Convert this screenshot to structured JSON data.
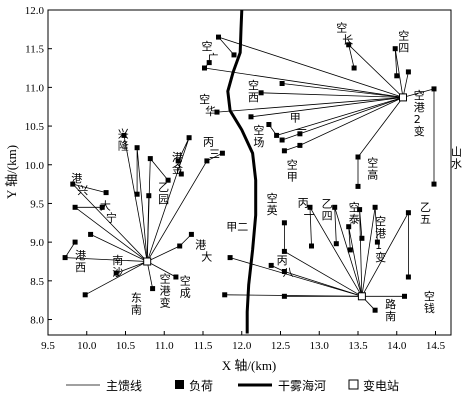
{
  "axes": {
    "xlabel": "X 轴/(km)",
    "ylabel": "Y 轴/(km)",
    "x_ticks": [
      "9.5",
      "10.0",
      "10.5",
      "11.0",
      "11.5",
      "12.0",
      "12.5",
      "13.0",
      "13.5",
      "14.0",
      "14.5"
    ],
    "y_ticks": [
      "8.0",
      "8.5",
      "9.0",
      "9.5",
      "10.0",
      "10.5",
      "11.0",
      "11.5",
      "12.0"
    ],
    "xlim": [
      9.5,
      14.7
    ],
    "ylim": [
      7.8,
      12.0
    ]
  },
  "legend": {
    "feeder": "主馈线",
    "load": "负荷",
    "river": "干雾海河",
    "substation": "变电站"
  },
  "substations": [
    {
      "x": 10.78,
      "y": 8.75
    },
    {
      "x": 13.55,
      "y": 8.3
    },
    {
      "x": 14.08,
      "y": 10.87
    }
  ],
  "feeders": [
    {
      "sub": 0,
      "path": [
        [
          9.82,
          9.75
        ],
        [
          10.25,
          9.64
        ]
      ]
    },
    {
      "sub": 0,
      "path": [
        [
          9.85,
          9.45
        ],
        [
          10.2,
          9.45
        ]
      ]
    },
    {
      "sub": 0,
      "path": [
        [
          10.05,
          9.1
        ]
      ]
    },
    {
      "sub": 0,
      "path": [
        [
          9.72,
          8.8
        ],
        [
          9.85,
          9.0
        ]
      ]
    },
    {
      "sub": 0,
      "path": [
        [
          9.98,
          8.32
        ]
      ]
    },
    {
      "sub": 0,
      "path": [
        [
          10.38,
          8.6
        ]
      ]
    },
    {
      "sub": 0,
      "path": [
        [
          10.48,
          10.38
        ]
      ]
    },
    {
      "sub": 0,
      "path": [
        [
          10.65,
          10.22
        ],
        [
          10.65,
          9.62
        ]
      ]
    },
    {
      "sub": 0,
      "path": [
        [
          10.8,
          9.6
        ]
      ]
    },
    {
      "sub": 0,
      "path": [
        [
          10.82,
          10.08
        ],
        [
          11.05,
          9.8
        ]
      ]
    },
    {
      "sub": 0,
      "path": [
        [
          11.32,
          10.35
        ],
        [
          11.18,
          10.05
        ],
        [
          11.22,
          9.88
        ]
      ]
    },
    {
      "sub": 0,
      "path": [
        [
          11.55,
          10.05
        ],
        [
          11.75,
          10.15
        ]
      ]
    },
    {
      "sub": 0,
      "path": [
        [
          11.2,
          8.95
        ],
        [
          11.35,
          9.1
        ]
      ]
    },
    {
      "sub": 0,
      "path": [
        [
          11.15,
          8.55
        ]
      ]
    },
    {
      "sub": 0,
      "path": [
        [
          10.85,
          8.4
        ]
      ]
    },
    {
      "sub": 1,
      "path": [
        [
          11.85,
          8.8
        ]
      ]
    },
    {
      "sub": 1,
      "path": [
        [
          11.78,
          8.32
        ]
      ]
    },
    {
      "sub": 1,
      "path": [
        [
          12.55,
          8.62
        ],
        [
          12.38,
          8.7
        ]
      ]
    },
    {
      "sub": 1,
      "path": [
        [
          12.55,
          8.88
        ],
        [
          12.55,
          9.25
        ]
      ]
    },
    {
      "sub": 1,
      "path": [
        [
          12.88,
          9.45
        ],
        [
          12.9,
          8.95
        ]
      ]
    },
    {
      "sub": 1,
      "path": [
        [
          13.2,
          9.45
        ],
        [
          13.22,
          8.98
        ]
      ]
    },
    {
      "sub": 1,
      "path": [
        [
          13.38,
          9.2
        ],
        [
          13.4,
          8.9
        ]
      ]
    },
    {
      "sub": 1,
      "path": [
        [
          13.52,
          9.42
        ],
        [
          13.55,
          9.05
        ]
      ]
    },
    {
      "sub": 1,
      "path": [
        [
          13.72,
          9.45
        ],
        [
          13.75,
          9.0
        ]
      ]
    },
    {
      "sub": 1,
      "path": [
        [
          14.15,
          9.38
        ],
        [
          14.15,
          8.55
        ]
      ]
    },
    {
      "sub": 1,
      "path": [
        [
          14.1,
          8.3
        ]
      ]
    },
    {
      "sub": 1,
      "path": [
        [
          13.72,
          8.12
        ]
      ]
    },
    {
      "sub": 1,
      "path": [
        [
          12.55,
          8.3
        ]
      ]
    },
    {
      "sub": 2,
      "path": [
        [
          11.7,
          11.65
        ],
        [
          11.9,
          11.42
        ]
      ]
    },
    {
      "sub": 2,
      "path": [
        [
          11.52,
          11.25
        ],
        [
          11.58,
          11.32
        ]
      ]
    },
    {
      "sub": 2,
      "path": [
        [
          11.68,
          10.68
        ]
      ]
    },
    {
      "sub": 2,
      "path": [
        [
          12.12,
          10.62
        ]
      ]
    },
    {
      "sub": 2,
      "path": [
        [
          12.25,
          10.93
        ]
      ]
    },
    {
      "sub": 2,
      "path": [
        [
          12.52,
          11.05
        ]
      ]
    },
    {
      "sub": 2,
      "path": [
        [
          12.45,
          10.38
        ],
        [
          12.35,
          10.52
        ]
      ]
    },
    {
      "sub": 2,
      "path": [
        [
          12.75,
          10.25
        ],
        [
          12.55,
          10.18
        ]
      ]
    },
    {
      "sub": 2,
      "path": [
        [
          12.75,
          10.4
        ],
        [
          12.52,
          10.32
        ]
      ]
    },
    {
      "sub": 2,
      "path": [
        [
          13.38,
          11.55
        ],
        [
          13.45,
          11.25
        ]
      ]
    },
    {
      "sub": 2,
      "path": [
        [
          13.98,
          11.5
        ],
        [
          14.0,
          11.15
        ]
      ]
    },
    {
      "sub": 2,
      "path": [
        [
          14.15,
          11.2
        ]
      ]
    },
    {
      "sub": 2,
      "path": [
        [
          14.48,
          10.98
        ],
        [
          14.48,
          9.75
        ]
      ]
    },
    {
      "sub": 2,
      "path": [
        [
          13.5,
          10.1
        ],
        [
          13.5,
          9.72
        ]
      ]
    }
  ],
  "river": [
    [
      12.0,
      12.0
    ],
    [
      11.99,
      11.75
    ],
    [
      11.98,
      11.45
    ],
    [
      11.89,
      11.2
    ],
    [
      11.82,
      10.95
    ],
    [
      11.85,
      10.7
    ],
    [
      12.0,
      10.45
    ],
    [
      12.14,
      10.15
    ],
    [
      12.18,
      9.8
    ],
    [
      12.18,
      9.35
    ],
    [
      12.14,
      8.9
    ],
    [
      12.09,
      8.45
    ],
    [
      12.07,
      8.1
    ],
    [
      12.07,
      7.82
    ]
  ],
  "labels": [
    {
      "text": "兴隆",
      "x": 10.4,
      "y": 10.35,
      "mode": "v"
    },
    {
      "text": "港兴",
      "x": 9.8,
      "y": 9.78,
      "mode": "d"
    },
    {
      "text": "大宁",
      "x": 10.17,
      "y": 9.42,
      "mode": "d"
    },
    {
      "text": "乙园",
      "x": 10.92,
      "y": 9.66,
      "mode": "v"
    },
    {
      "text": "港金",
      "x": 11.1,
      "y": 10.05,
      "mode": "v"
    },
    {
      "text": "丙三",
      "x": 11.5,
      "y": 10.25,
      "mode": "d"
    },
    {
      "text": "港西",
      "x": 9.85,
      "y": 8.78,
      "mode": "v"
    },
    {
      "text": "南沙",
      "x": 10.33,
      "y": 8.72,
      "mode": "v"
    },
    {
      "text": "东南",
      "x": 10.57,
      "y": 8.23,
      "mode": "v"
    },
    {
      "text": "空港变",
      "x": 10.94,
      "y": 8.48,
      "mode": "v"
    },
    {
      "text": "港大",
      "x": 11.4,
      "y": 8.92,
      "mode": "d"
    },
    {
      "text": "空广",
      "x": 11.48,
      "y": 11.48,
      "mode": "d"
    },
    {
      "text": "空华",
      "x": 11.45,
      "y": 10.8,
      "mode": "d"
    },
    {
      "text": "空西",
      "x": 12.08,
      "y": 10.98,
      "mode": "v"
    },
    {
      "text": "空场",
      "x": 12.15,
      "y": 10.4,
      "mode": "v"
    },
    {
      "text": "甲一",
      "x": 12.62,
      "y": 10.56,
      "mode": "d"
    },
    {
      "text": "空甲",
      "x": 12.58,
      "y": 9.95,
      "mode": "v"
    },
    {
      "text": "空长",
      "x": 13.22,
      "y": 11.72,
      "mode": "d"
    },
    {
      "text": "空四",
      "x": 14.02,
      "y": 11.62,
      "mode": "v"
    },
    {
      "text": "空港2变",
      "x": 14.22,
      "y": 10.85,
      "mode": "v"
    },
    {
      "text": "空高",
      "x": 13.62,
      "y": 9.98,
      "mode": "v"
    },
    {
      "text": "山水",
      "x": 14.7,
      "y": 10.12,
      "mode": "v"
    },
    {
      "text": "甲二",
      "x": 11.8,
      "y": 9.15,
      "mode": "h"
    },
    {
      "text": "空成",
      "x": 11.2,
      "y": 8.45,
      "mode": "v"
    },
    {
      "text": "空英",
      "x": 12.32,
      "y": 9.52,
      "mode": "v"
    },
    {
      "text": "丙一",
      "x": 12.72,
      "y": 9.46,
      "mode": "d"
    },
    {
      "text": "乙四",
      "x": 13.03,
      "y": 9.45,
      "mode": "v"
    },
    {
      "text": "空泰",
      "x": 13.38,
      "y": 9.4,
      "mode": "v"
    },
    {
      "text": "空港1变",
      "x": 13.72,
      "y": 9.22,
      "mode": "v"
    },
    {
      "text": "乙五",
      "x": 14.3,
      "y": 9.4,
      "mode": "v"
    },
    {
      "text": "丙八",
      "x": 12.45,
      "y": 8.72,
      "mode": "d"
    },
    {
      "text": "路南",
      "x": 13.85,
      "y": 8.15,
      "mode": "v"
    },
    {
      "text": "空钱",
      "x": 14.35,
      "y": 8.25,
      "mode": "v"
    }
  ]
}
